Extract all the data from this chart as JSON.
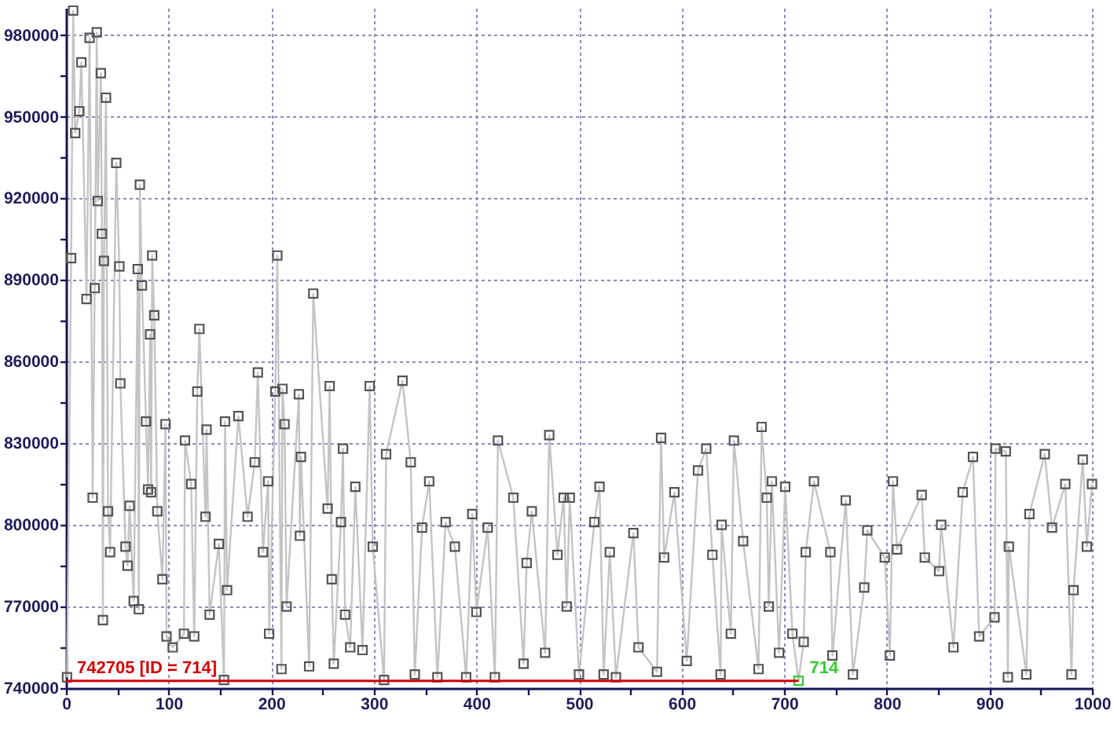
{
  "chart_data": {
    "type": "line",
    "x": [
      1,
      5,
      7,
      9,
      13,
      15,
      20,
      23,
      26,
      28,
      30,
      31,
      34,
      35,
      36,
      37,
      39,
      41,
      43,
      49,
      52,
      53,
      58,
      60,
      62,
      66,
      70,
      71,
      72,
      74,
      78,
      80,
      82,
      83,
      84,
      86,
      89,
      94,
      97,
      98,
      104,
      115,
      116,
      122,
      125,
      128,
      130,
      136,
      137,
      140,
      149,
      154,
      155,
      157,
      168,
      177,
      184,
      187,
      192,
      197,
      198,
      204,
      206,
      210,
      211,
      213,
      215,
      227,
      228,
      229,
      237,
      241,
      255,
      257,
      259,
      261,
      268,
      270,
      272,
      277,
      282,
      289,
      296,
      299,
      310,
      312,
      328,
      336,
      340,
      347,
      354,
      362,
      370,
      379,
      390,
      396,
      400,
      411,
      418,
      421,
      436,
      446,
      449,
      454,
      467,
      471,
      479,
      485,
      488,
      491,
      500,
      515,
      520,
      524,
      530,
      536,
      553,
      558,
      576,
      580,
      583,
      593,
      605,
      616,
      624,
      630,
      638,
      639,
      648,
      651,
      660,
      675,
      678,
      683,
      685,
      688,
      695,
      701,
      708,
      714,
      719,
      721,
      729,
      745,
      747,
      760,
      767,
      778,
      781,
      798,
      803,
      806,
      810,
      834,
      837,
      851,
      853,
      865,
      874,
      884,
      890,
      905,
      906,
      916,
      918,
      919,
      936,
      939,
      954,
      961,
      974,
      980,
      982,
      991,
      995,
      1000
    ],
    "series": [
      {
        "color": "#c4c4c4",
        "marker": "square",
        "values": [
          744000,
          898000,
          989000,
          944000,
          952000,
          970000,
          883000,
          979000,
          810000,
          887000,
          981000,
          919000,
          966000,
          907000,
          765000,
          897000,
          957000,
          805000,
          790000,
          933000,
          895000,
          852000,
          792000,
          785000,
          807000,
          772000,
          894000,
          769000,
          925000,
          888000,
          838000,
          813000,
          870000,
          812000,
          899000,
          877000,
          805000,
          780000,
          837000,
          759000,
          755000,
          760000,
          831000,
          815000,
          759000,
          849000,
          872000,
          803000,
          835000,
          767000,
          793000,
          743000,
          838000,
          776000,
          840000,
          803000,
          823000,
          856000,
          790000,
          816000,
          760000,
          849000,
          899000,
          747000,
          850000,
          837000,
          770000,
          848000,
          796000,
          825000,
          748000,
          885000,
          806000,
          851000,
          780000,
          749000,
          801000,
          828000,
          767000,
          755000,
          814000,
          754000,
          851000,
          792000,
          743000,
          826000,
          853000,
          823000,
          745000,
          799000,
          816000,
          744000,
          801000,
          792000,
          744000,
          804000,
          768000,
          799000,
          744000,
          831000,
          810000,
          749000,
          786000,
          805000,
          753000,
          833000,
          789000,
          810000,
          770000,
          810000,
          745000,
          801000,
          814000,
          745000,
          790000,
          744000,
          797000,
          755000,
          746000,
          832000,
          788000,
          812000,
          750000,
          820000,
          828000,
          789000,
          745000,
          800000,
          760000,
          831000,
          794000,
          747000,
          836000,
          810000,
          770000,
          816000,
          753000,
          814000,
          760000,
          742705,
          757000,
          790000,
          816000,
          790000,
          752000,
          809000,
          745000,
          777000,
          798000,
          788000,
          752000,
          816000,
          791000,
          811000,
          788000,
          783000,
          800000,
          755000,
          812000,
          825000,
          759000,
          766000,
          828000,
          827000,
          744000,
          792000,
          745000,
          804000,
          826000,
          799000,
          815000,
          745000,
          776000,
          824000,
          792000,
          815000
        ],
        "colors": [
          "#555555",
          "#555555",
          "#555555",
          "#555555",
          "#555555",
          "#555555",
          "#555555",
          "#555555",
          "#555555",
          "#555555",
          "#555555",
          "#555555",
          "#555555",
          "#555555",
          "#555555",
          "#555555",
          "#555555",
          "#555555",
          "#555555",
          "#555555",
          "#555555",
          "#555555",
          "#555555",
          "#555555",
          "#555555",
          "#555555",
          "#555555",
          "#555555",
          "#555555",
          "#555555",
          "#555555",
          "#555555",
          "#555555",
          "#555555",
          "#555555",
          "#555555",
          "#555555",
          "#555555",
          "#555555",
          "#555555",
          "#555555",
          "#555555",
          "#555555",
          "#555555",
          "#555555",
          "#555555",
          "#555555",
          "#555555",
          "#555555",
          "#555555",
          "#555555",
          "#555555",
          "#555555",
          "#555555",
          "#555555",
          "#555555",
          "#555555",
          "#555555",
          "#555555",
          "#555555",
          "#555555",
          "#555555",
          "#555555",
          "#555555",
          "#555555",
          "#555555",
          "#555555",
          "#555555",
          "#555555",
          "#555555",
          "#555555",
          "#555555",
          "#555555",
          "#555555",
          "#555555",
          "#555555",
          "#555555",
          "#555555",
          "#555555",
          "#555555",
          "#555555",
          "#555555",
          "#555555",
          "#555555",
          "#555555",
          "#555555",
          "#555555",
          "#555555",
          "#555555",
          "#555555",
          "#555555",
          "#555555",
          "#555555",
          "#555555",
          "#555555",
          "#555555",
          "#555555",
          "#555555",
          "#555555",
          "#555555",
          "#555555",
          "#555555",
          "#555555",
          "#555555",
          "#555555",
          "#555555",
          "#555555",
          "#555555",
          "#555555",
          "#555555",
          "#555555",
          "#555555",
          "#555555",
          "#555555",
          "#555555",
          "#555555",
          "#555555",
          "#555555",
          "#555555",
          "#555555",
          "#555555",
          "#555555",
          "#555555",
          "#555555",
          "#555555",
          "#555555",
          "#555555",
          "#555555",
          "#555555",
          "#555555",
          "#555555",
          "#555555",
          "#555555",
          "#555555",
          "#555555",
          "#555555",
          "#555555",
          "#555555",
          "#555555",
          "#33cc33",
          "#555555",
          "#555555",
          "#555555",
          "#555555",
          "#555555",
          "#555555",
          "#555555",
          "#555555",
          "#555555",
          "#555555",
          "#555555",
          "#555555",
          "#555555",
          "#555555",
          "#555555",
          "#555555",
          "#555555",
          "#555555",
          "#555555",
          "#555555",
          "#555555",
          "#555555",
          "#555555",
          "#555555",
          "#555555",
          "#555555",
          "#555555",
          "#555555",
          "#555555",
          "#555555",
          "#555555",
          "#555555",
          "#555555",
          "#555555",
          "#555555",
          "#555555"
        ]
      },
      {
        "type": "line",
        "color": "#d40000",
        "marker": "none",
        "x": [
          0,
          714
        ],
        "values": [
          742705,
          742705
        ]
      }
    ],
    "xlim": [
      0,
      1000
    ],
    "xticks": [
      0,
      {
        "value": 50,
        "label": null
      },
      100,
      {
        "value": 150,
        "label": null
      },
      200,
      {
        "value": 250,
        "label": null
      },
      300,
      {
        "value": 350,
        "label": null
      },
      400,
      {
        "value": 450,
        "label": null
      },
      500,
      {
        "value": 550,
        "label": null
      },
      600,
      {
        "value": 650,
        "label": null
      },
      700,
      {
        "value": 750,
        "label": null
      },
      800,
      {
        "value": 850,
        "label": null
      },
      900,
      {
        "value": 950,
        "label": null
      },
      1000
    ],
    "ylim": [
      740000,
      990000
    ],
    "yticks": [
      740000,
      {
        "value": 755000,
        "label": null
      },
      770000,
      {
        "value": 785000,
        "label": null
      },
      800000,
      {
        "value": 815000,
        "label": null
      },
      830000,
      {
        "value": 845000,
        "label": null
      },
      860000,
      {
        "value": 875000,
        "label": null
      },
      890000,
      {
        "value": 905000,
        "label": null
      },
      920000,
      {
        "value": 935000,
        "label": null
      },
      950000,
      {
        "value": 965000,
        "label": null
      },
      980000
    ],
    "grid": true,
    "annotations": [
      {
        "text": "742705 [ID = 714]",
        "x": 0,
        "y": 742705
      },
      {
        "text": "714",
        "x": 714,
        "y": 742705
      }
    ]
  }
}
